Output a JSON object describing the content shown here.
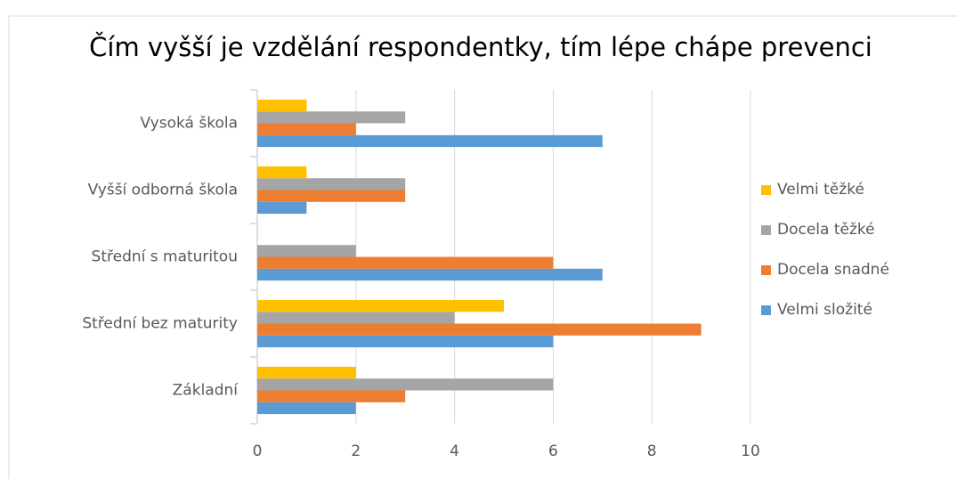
{
  "chart_data": {
    "type": "barh",
    "title": "Čím vyšší je vzdělání respondentky, tím lépe chápe prevenci",
    "categories": [
      "Základní",
      "Střední bez maturity",
      "Střední s maturitou",
      "Vyšší odborná škola",
      "Vysoká škola"
    ],
    "series": [
      {
        "name": "Velmi složité",
        "color": "#5b9bd5",
        "values": [
          2,
          6,
          7,
          1,
          7
        ]
      },
      {
        "name": "Docela snadné",
        "color": "#ed7d31",
        "values": [
          3,
          9,
          6,
          3,
          2
        ]
      },
      {
        "name": "Docela těžké",
        "color": "#a5a5a5",
        "values": [
          6,
          4,
          2,
          3,
          3
        ]
      },
      {
        "name": "Velmi těžké",
        "color": "#ffc000",
        "values": [
          2,
          5,
          0,
          1,
          1
        ]
      }
    ],
    "xlim": [
      0,
      10
    ],
    "xticks": [
      0,
      2,
      4,
      6,
      8,
      10
    ],
    "grid": true,
    "legend": "right"
  }
}
